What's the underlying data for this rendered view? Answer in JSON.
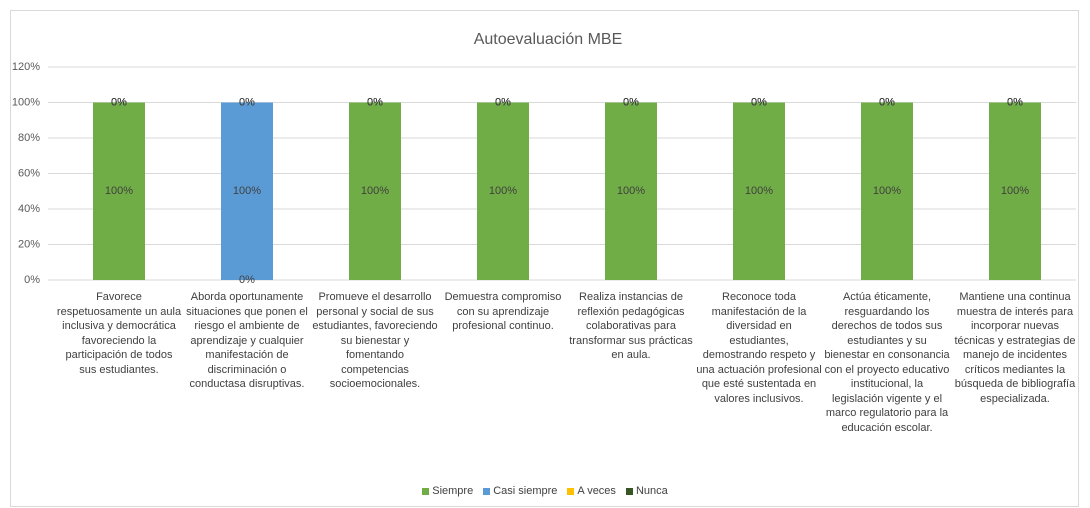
{
  "chart_data": {
    "type": "bar",
    "stacked": true,
    "title": "Autoevaluación MBE",
    "categories": [
      "Favorece respetuosamente un aula inclusiva y democrática favoreciendo la participación de todos sus estudiantes.",
      "Aborda oportunamente situaciones que ponen el riesgo el ambiente de aprendizaje y cualquier manifestación de discriminación o conductasa disruptivas.",
      "Promueve el desarrollo personal y social de sus estudiantes, favoreciendo su bienestar y fomentando competencias socioemocionales.",
      "Demuestra compromiso con su aprendizaje profesional continuo.",
      "Realiza instancias de reflexión pedagógicas colaborativas para transformar sus prácticas en aula.",
      "Reconoce toda manifestación de la diversidad en estudiantes, demostrando respeto y una actuación profesional que esté sustentada en valores inclusivos.",
      "Actúa éticamente, resguardando los derechos de todos sus estudiantes y su bienestar en consonancia con el proyecto educativo institucional, la legislación vigente y el marco regulatorio para la educación escolar.",
      "Mantiene una continua muestra de interés para incorporar nuevas técnicas y estrategias de manejo de incidentes críticos mediantes la búsqueda de bibliografía especializada."
    ],
    "series": [
      {
        "name": "Siempre",
        "color": "#70ad47",
        "values": [
          100,
          0,
          100,
          100,
          100,
          100,
          100,
          100
        ],
        "value_labels": [
          "100%",
          "0%",
          "100%",
          "100%",
          "100%",
          "100%",
          "100%",
          "100%"
        ]
      },
      {
        "name": "Casi siempre",
        "color": "#5b9bd5",
        "values": [
          0,
          100,
          0,
          0,
          0,
          0,
          0,
          0
        ],
        "value_labels": [
          "0%",
          "100%",
          "0%",
          "0%",
          "0%",
          "0%",
          "0%",
          "0%"
        ]
      },
      {
        "name": "A veces",
        "color": "#ffc000",
        "values": [
          0,
          0,
          0,
          0,
          0,
          0,
          0,
          0
        ],
        "value_labels": [
          "0%",
          "0%",
          "0%",
          "0%",
          "0%",
          "0%",
          "0%",
          "0%"
        ]
      },
      {
        "name": "Nunca",
        "color": "#375623",
        "values": [
          0,
          0,
          0,
          0,
          0,
          0,
          0,
          0
        ],
        "value_labels": [
          "0%",
          "0%",
          "0%",
          "0%",
          "0%",
          "0%",
          "0%",
          "0%"
        ]
      }
    ],
    "ylim": [
      0,
      120
    ],
    "yticks": [
      {
        "value": 0,
        "label": "0%"
      },
      {
        "value": 20,
        "label": "20%"
      },
      {
        "value": 40,
        "label": "40%"
      },
      {
        "value": 60,
        "label": "60%"
      },
      {
        "value": 80,
        "label": "80%"
      },
      {
        "value": 100,
        "label": "100%"
      },
      {
        "value": 120,
        "label": "120%"
      }
    ],
    "grid": true,
    "legend": "bottom"
  }
}
